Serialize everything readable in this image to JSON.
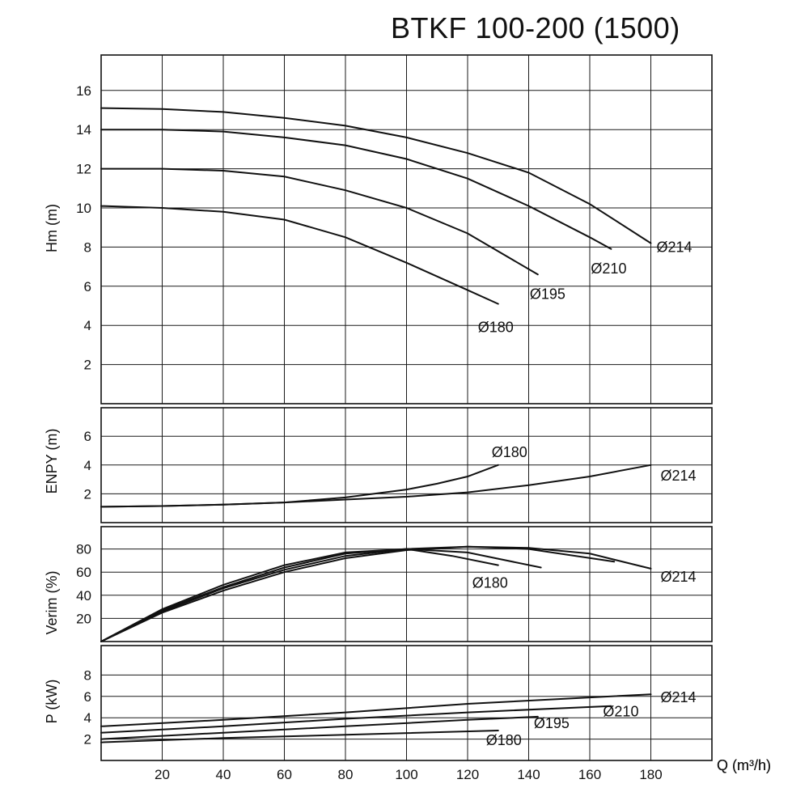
{
  "title": "BTKF 100-200 (1500)",
  "chart_data": [
    {
      "type": "line",
      "panel": "head",
      "ylabel": "Hm (m)",
      "xlabel": "Q (m³/h)",
      "xlim": [
        0,
        200
      ],
      "ylim": [
        0,
        17
      ],
      "yticks": [
        2,
        4,
        6,
        8,
        10,
        12,
        14,
        16
      ],
      "grid": true,
      "series": [
        {
          "name": "Ø214",
          "x": [
            0,
            20,
            40,
            60,
            80,
            100,
            120,
            140,
            160,
            180
          ],
          "y": [
            15.1,
            15.05,
            14.9,
            14.6,
            14.2,
            13.6,
            12.8,
            11.8,
            10.2,
            8.2
          ]
        },
        {
          "name": "Ø210",
          "x": [
            0,
            20,
            40,
            60,
            80,
            100,
            120,
            140,
            160,
            167
          ],
          "y": [
            14.0,
            14.0,
            13.9,
            13.6,
            13.2,
            12.5,
            11.5,
            10.1,
            8.5,
            7.9
          ]
        },
        {
          "name": "Ø195",
          "x": [
            0,
            20,
            40,
            60,
            80,
            100,
            120,
            143
          ],
          "y": [
            12.0,
            12.0,
            11.9,
            11.6,
            10.9,
            10.0,
            8.7,
            6.6
          ]
        },
        {
          "name": "Ø180",
          "x": [
            0,
            20,
            40,
            60,
            80,
            100,
            120,
            130
          ],
          "y": [
            10.1,
            10.0,
            9.8,
            9.4,
            8.5,
            7.2,
            5.8,
            5.1
          ]
        }
      ]
    },
    {
      "type": "line",
      "panel": "npsh",
      "ylabel": "ENPY (m)",
      "xlim": [
        0,
        200
      ],
      "ylim": [
        0,
        8
      ],
      "yticks": [
        2,
        4,
        6
      ],
      "grid": true,
      "series": [
        {
          "name": "Ø180",
          "x": [
            0,
            20,
            40,
            60,
            80,
            100,
            110,
            120,
            130
          ],
          "y": [
            1.1,
            1.15,
            1.25,
            1.4,
            1.75,
            2.3,
            2.7,
            3.2,
            4.0
          ]
        },
        {
          "name": "Ø214",
          "x": [
            0,
            20,
            40,
            60,
            80,
            100,
            120,
            140,
            160,
            180
          ],
          "y": [
            1.1,
            1.15,
            1.25,
            1.4,
            1.6,
            1.8,
            2.1,
            2.6,
            3.2,
            4.0
          ]
        }
      ]
    },
    {
      "type": "line",
      "panel": "efficiency",
      "ylabel": "Verim (%)",
      "xlim": [
        0,
        200
      ],
      "ylim": [
        0,
        100
      ],
      "yticks": [
        20,
        40,
        60,
        80
      ],
      "grid": true,
      "series": [
        {
          "name": "Ø214",
          "x": [
            0,
            20,
            40,
            60,
            80,
            100,
            120,
            140,
            160,
            180
          ],
          "y": [
            0,
            25,
            44,
            60,
            72,
            79,
            82,
            81,
            76,
            63
          ]
        },
        {
          "name": "",
          "x": [
            0,
            20,
            40,
            60,
            80,
            100,
            120,
            140,
            168
          ],
          "y": [
            0,
            26,
            46,
            62,
            74,
            80,
            82,
            80,
            69
          ]
        },
        {
          "name": "",
          "x": [
            0,
            20,
            40,
            60,
            80,
            100,
            120,
            144
          ],
          "y": [
            0,
            27,
            47,
            64,
            76,
            80,
            77,
            64
          ]
        },
        {
          "name": "Ø180",
          "x": [
            0,
            20,
            40,
            60,
            80,
            100,
            115,
            130
          ],
          "y": [
            0,
            28,
            49,
            66,
            77,
            80,
            74,
            66
          ]
        }
      ]
    },
    {
      "type": "line",
      "panel": "power",
      "ylabel": "P (kW)",
      "xlim": [
        0,
        200
      ],
      "ylim": [
        0,
        10
      ],
      "yticks": [
        2,
        4,
        6,
        8
      ],
      "grid": true,
      "xticks": [
        20,
        40,
        60,
        80,
        100,
        120,
        140,
        160,
        180
      ],
      "series": [
        {
          "name": "Ø214",
          "x": [
            0,
            40,
            80,
            120,
            160,
            180
          ],
          "y": [
            3.2,
            3.8,
            4.5,
            5.3,
            5.9,
            6.2
          ]
        },
        {
          "name": "Ø210",
          "x": [
            0,
            40,
            80,
            120,
            167
          ],
          "y": [
            2.6,
            3.2,
            3.9,
            4.5,
            5.1
          ]
        },
        {
          "name": "Ø195",
          "x": [
            0,
            40,
            80,
            120,
            143
          ],
          "y": [
            2.0,
            2.6,
            3.2,
            3.8,
            4.1
          ]
        },
        {
          "name": "Ø180",
          "x": [
            0,
            40,
            80,
            130
          ],
          "y": [
            1.7,
            2.1,
            2.4,
            2.8
          ]
        }
      ]
    }
  ]
}
